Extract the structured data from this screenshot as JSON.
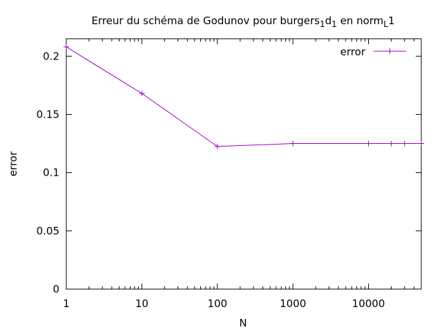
{
  "chart_data": {
    "type": "line",
    "title": {
      "part1": "Erreur du schéma de Godunov pour burgers",
      "sub1": "1",
      "part2": "d",
      "sub2": "1",
      "part3": " en norm",
      "sub3": "L",
      "part4": "1"
    },
    "xlabel": "N",
    "ylabel": "error",
    "xscale": "log",
    "xlim": [
      1,
      50000
    ],
    "ylim": [
      0,
      0.215
    ],
    "xticks": [
      {
        "value": 1,
        "label": "1"
      },
      {
        "value": 10,
        "label": "10"
      },
      {
        "value": 100,
        "label": "100"
      },
      {
        "value": 1000,
        "label": "1000"
      },
      {
        "value": 10000,
        "label": "10000"
      }
    ],
    "yticks": [
      {
        "value": 0,
        "label": "0"
      },
      {
        "value": 0.05,
        "label": "0.05"
      },
      {
        "value": 0.1,
        "label": "0.1"
      },
      {
        "value": 0.15,
        "label": "0.15"
      },
      {
        "value": 0.2,
        "label": "0.2"
      }
    ],
    "grid": false,
    "legend_position": "top-right",
    "series": [
      {
        "name": "error",
        "color": "#9400d3",
        "marker": "plus",
        "x": [
          1,
          10,
          100,
          1000,
          10000,
          20000,
          30000,
          50000
        ],
        "y": [
          0.208,
          0.168,
          0.1225,
          0.125,
          0.125,
          0.125,
          0.125,
          0.125
        ]
      }
    ]
  }
}
